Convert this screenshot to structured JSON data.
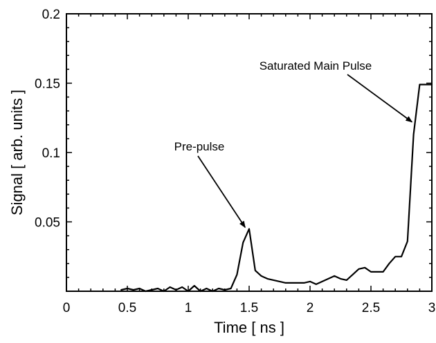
{
  "chart_data": {
    "type": "line",
    "title": "",
    "xlabel": "Time [ ns ]",
    "ylabel": "Signal [ arb. units ]",
    "xlim": [
      0,
      3
    ],
    "ylim": [
      0,
      0.2
    ],
    "x_ticks": [
      0,
      0.5,
      1,
      1.5,
      2,
      2.5,
      3
    ],
    "x_tick_labels": [
      "0",
      "0.5",
      "1",
      "1.5",
      "2",
      "2.5",
      "3"
    ],
    "y_ticks": [
      0.05,
      0.1,
      0.15,
      0.2
    ],
    "y_tick_labels": [
      "0.05",
      "0.1",
      "0.15",
      "0.2"
    ],
    "grid": false,
    "legend": "none",
    "line_color": "#000000",
    "series": [
      {
        "x": [
          0.45,
          0.5,
          0.55,
          0.6,
          0.65,
          0.7,
          0.75,
          0.8,
          0.85,
          0.9,
          0.95,
          1.0,
          1.05,
          1.1,
          1.15,
          1.2,
          1.25,
          1.3,
          1.35,
          1.4,
          1.45,
          1.5,
          1.55,
          1.6,
          1.65,
          1.7,
          1.75,
          1.8,
          1.85,
          1.9,
          1.95,
          2.0,
          2.05,
          2.1,
          2.15,
          2.2,
          2.25,
          2.3,
          2.35,
          2.4,
          2.45,
          2.5,
          2.55,
          2.6,
          2.65,
          2.7,
          2.75,
          2.8,
          2.85,
          2.9,
          2.95,
          3.0
        ],
        "y": [
          0.001,
          0.002,
          0.001,
          0.002,
          0.0,
          0.001,
          0.002,
          0.0,
          0.003,
          0.001,
          0.003,
          0.0,
          0.004,
          0.0,
          0.002,
          0.0,
          0.002,
          0.001,
          0.002,
          0.012,
          0.035,
          0.045,
          0.015,
          0.011,
          0.009,
          0.008,
          0.007,
          0.006,
          0.006,
          0.006,
          0.006,
          0.007,
          0.005,
          0.007,
          0.009,
          0.011,
          0.009,
          0.008,
          0.012,
          0.016,
          0.017,
          0.014,
          0.014,
          0.014,
          0.02,
          0.025,
          0.025,
          0.036,
          0.113,
          0.149,
          0.149,
          0.149
        ]
      }
    ],
    "annotations": [
      {
        "text": "Pre-pulse",
        "target": [
          1.49,
          0.046
        ]
      },
      {
        "text": "Saturated Main Pulse",
        "target": [
          2.86,
          0.122
        ]
      }
    ]
  }
}
